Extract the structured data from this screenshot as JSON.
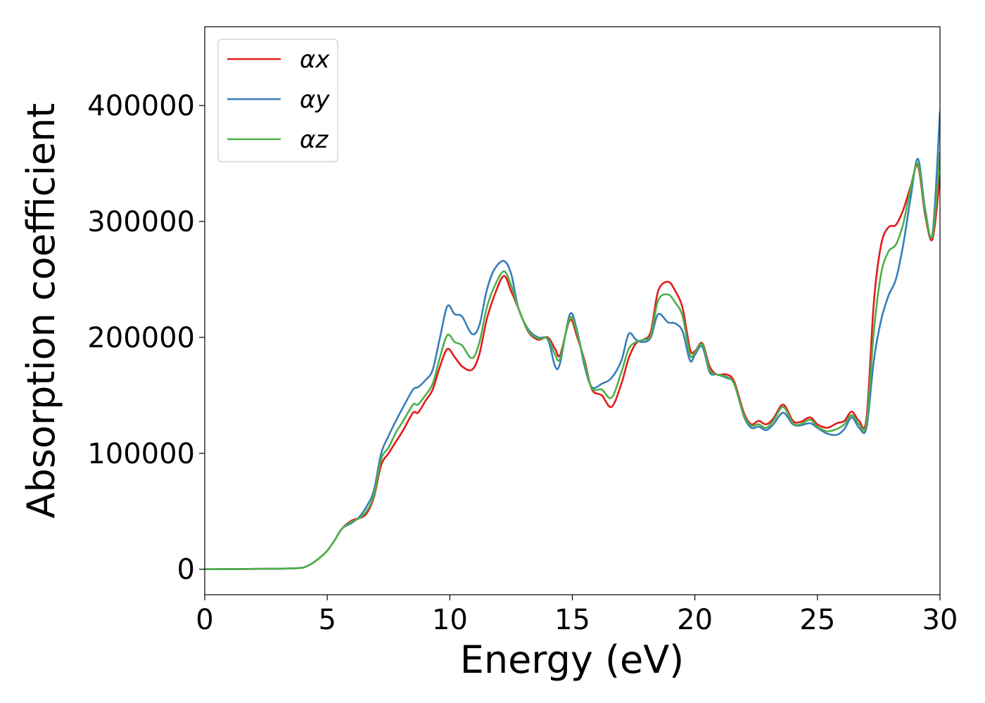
{
  "chart_data": {
    "type": "line",
    "title": "",
    "xlabel": "Energy (eV)",
    "ylabel": "Absorption coefficient",
    "xlim": [
      0,
      30
    ],
    "ylim": [
      -22000,
      468000
    ],
    "xticks": [
      "0",
      "5",
      "10",
      "15",
      "20",
      "25",
      "30"
    ],
    "yticks": [
      "0",
      "100000",
      "200000",
      "300000",
      "400000"
    ],
    "grid": false,
    "legend_position": "top-left",
    "series": [
      {
        "name": "αx",
        "color": "#e41a1c",
        "x": [
          0,
          3.5,
          4.2,
          4.7,
          5.0,
          5.3,
          5.6,
          6.0,
          6.3,
          6.6,
          6.9,
          7.2,
          7.5,
          7.8,
          8.1,
          8.5,
          8.7,
          9.0,
          9.3,
          9.6,
          9.9,
          10.2,
          10.5,
          10.9,
          11.2,
          11.5,
          11.8,
          12.2,
          12.5,
          12.8,
          13.2,
          13.6,
          14.0,
          14.3,
          14.5,
          14.9,
          15.2,
          15.5,
          15.8,
          16.2,
          16.6,
          17.0,
          17.3,
          17.6,
          17.9,
          18.2,
          18.5,
          18.9,
          19.2,
          19.5,
          19.8,
          20.0,
          20.3,
          20.6,
          20.9,
          21.3,
          21.6,
          22.0,
          22.3,
          22.6,
          22.9,
          23.2,
          23.6,
          24.0,
          24.3,
          24.7,
          25.0,
          25.4,
          25.8,
          26.1,
          26.4,
          26.7,
          27.0,
          27.3,
          27.6,
          27.9,
          28.2,
          28.5,
          28.8,
          29.1,
          29.4,
          29.7,
          30.0
        ],
        "values": [
          0,
          700,
          3000,
          10000,
          16000,
          25000,
          35000,
          42000,
          44000,
          48000,
          62000,
          90000,
          100000,
          110000,
          120000,
          135000,
          135000,
          145000,
          155000,
          175000,
          190000,
          183000,
          175000,
          172000,
          185000,
          215000,
          235000,
          253000,
          240000,
          225000,
          205000,
          198000,
          200000,
          190000,
          185000,
          215000,
          200000,
          180000,
          155000,
          150000,
          140000,
          160000,
          182000,
          195000,
          198000,
          205000,
          240000,
          248000,
          240000,
          225000,
          190000,
          188000,
          195000,
          175000,
          168000,
          168000,
          162000,
          135000,
          125000,
          128000,
          125000,
          130000,
          142000,
          128000,
          127000,
          131000,
          125000,
          122000,
          126000,
          128000,
          136000,
          128000,
          130000,
          230000,
          280000,
          295000,
          297000,
          310000,
          330000,
          348000,
          305000,
          285000,
          340000
        ]
      },
      {
        "name": "αy",
        "color": "#377eb8",
        "x": [
          0,
          3.5,
          4.2,
          4.7,
          5.0,
          5.3,
          5.6,
          6.0,
          6.3,
          6.6,
          6.9,
          7.2,
          7.5,
          7.8,
          8.1,
          8.5,
          8.7,
          9.0,
          9.3,
          9.6,
          9.9,
          10.2,
          10.5,
          10.9,
          11.2,
          11.5,
          11.8,
          12.2,
          12.5,
          12.8,
          13.2,
          13.6,
          14.0,
          14.3,
          14.5,
          14.9,
          15.2,
          15.5,
          15.8,
          16.2,
          16.6,
          17.0,
          17.3,
          17.6,
          17.9,
          18.2,
          18.5,
          18.9,
          19.2,
          19.5,
          19.8,
          20.0,
          20.3,
          20.6,
          20.9,
          21.3,
          21.6,
          22.0,
          22.3,
          22.6,
          22.9,
          23.2,
          23.6,
          24.0,
          24.3,
          24.7,
          25.0,
          25.4,
          25.8,
          26.1,
          26.4,
          26.7,
          27.0,
          27.3,
          27.6,
          27.9,
          28.2,
          28.5,
          28.8,
          29.1,
          29.4,
          29.7,
          30.0
        ],
        "values": [
          0,
          700,
          3000,
          10000,
          16000,
          25000,
          35000,
          40000,
          45000,
          54000,
          68000,
          100000,
          115000,
          128000,
          140000,
          155000,
          157000,
          163000,
          172000,
          200000,
          227000,
          220000,
          218000,
          203000,
          210000,
          240000,
          258000,
          266000,
          255000,
          225000,
          207000,
          200000,
          198000,
          175000,
          178000,
          220000,
          205000,
          175000,
          157000,
          160000,
          165000,
          180000,
          203000,
          198000,
          196000,
          200000,
          220000,
          213000,
          212000,
          205000,
          180000,
          185000,
          192000,
          170000,
          168000,
          165000,
          160000,
          132000,
          122000,
          123000,
          120000,
          125000,
          135000,
          125000,
          124000,
          126000,
          122000,
          117000,
          116000,
          121000,
          131000,
          122000,
          122000,
          180000,
          215000,
          236000,
          250000,
          280000,
          320000,
          354000,
          310000,
          290000,
          395000
        ]
      },
      {
        "name": "αz",
        "color": "#4daf4a",
        "x": [
          0,
          3.5,
          4.2,
          4.7,
          5.0,
          5.3,
          5.6,
          6.0,
          6.3,
          6.6,
          6.9,
          7.2,
          7.5,
          7.8,
          8.1,
          8.5,
          8.7,
          9.0,
          9.3,
          9.6,
          9.9,
          10.2,
          10.5,
          10.9,
          11.2,
          11.5,
          11.8,
          12.2,
          12.5,
          12.8,
          13.2,
          13.6,
          14.0,
          14.3,
          14.5,
          14.9,
          15.2,
          15.5,
          15.8,
          16.2,
          16.6,
          17.0,
          17.3,
          17.6,
          17.9,
          18.2,
          18.5,
          18.9,
          19.2,
          19.5,
          19.8,
          20.0,
          20.3,
          20.6,
          20.9,
          21.3,
          21.6,
          22.0,
          22.3,
          22.6,
          22.9,
          23.2,
          23.6,
          24.0,
          24.3,
          24.7,
          25.0,
          25.4,
          25.8,
          26.1,
          26.4,
          26.7,
          27.0,
          27.3,
          27.6,
          27.9,
          28.2,
          28.5,
          28.8,
          29.1,
          29.4,
          29.7,
          30.0
        ],
        "values": [
          0,
          700,
          3000,
          10000,
          16000,
          25000,
          35000,
          41000,
          44000,
          50000,
          64000,
          95000,
          105000,
          118000,
          128000,
          142000,
          142000,
          150000,
          160000,
          183000,
          202000,
          196000,
          193000,
          182000,
          195000,
          225000,
          243000,
          257000,
          245000,
          225000,
          206000,
          199000,
          199000,
          185000,
          182000,
          217000,
          203000,
          178000,
          156000,
          155000,
          148000,
          170000,
          190000,
          196000,
          198000,
          202000,
          232000,
          237000,
          230000,
          218000,
          185000,
          187000,
          194000,
          172000,
          168000,
          166000,
          160000,
          133000,
          124000,
          125000,
          122000,
          128000,
          140000,
          126000,
          125000,
          129000,
          123000,
          119000,
          121000,
          125000,
          133000,
          125000,
          126000,
          205000,
          255000,
          274000,
          280000,
          298000,
          328000,
          350000,
          308000,
          288000,
          360000
        ]
      }
    ]
  }
}
